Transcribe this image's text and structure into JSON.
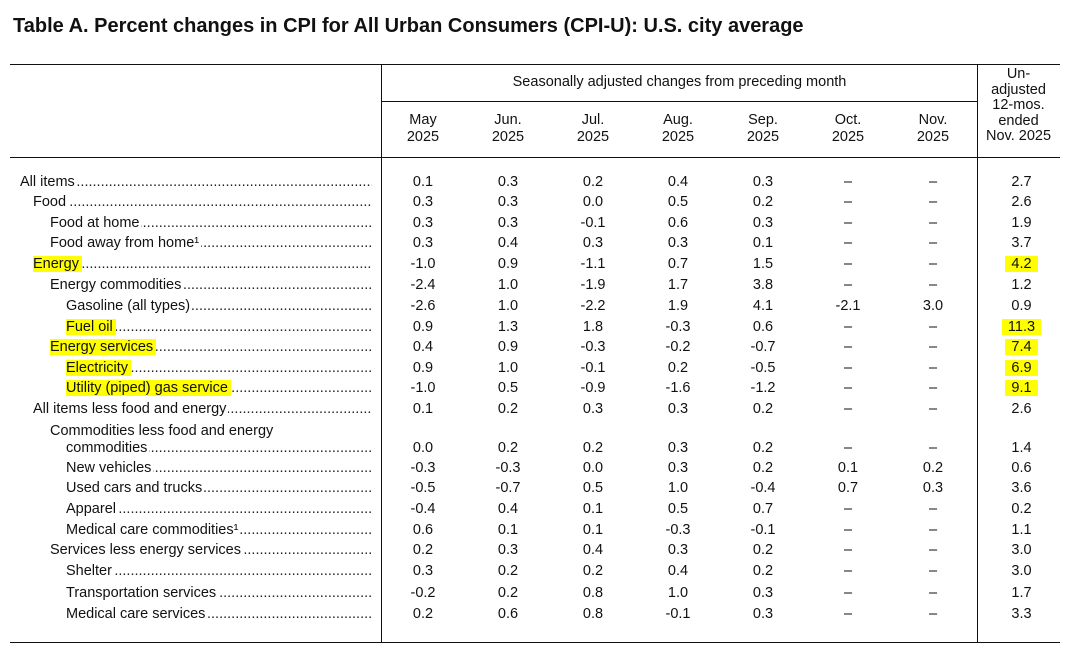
{
  "title": "Table A. Percent changes in CPI for All Urban Consumers (CPI-U): U.S. city average",
  "header": {
    "span_label": "Seasonally adjusted changes from preceding month",
    "columns": [
      {
        "line1": "May",
        "line2": "2025"
      },
      {
        "line1": "Jun.",
        "line2": "2025"
      },
      {
        "line1": "Jul.",
        "line2": "2025"
      },
      {
        "line1": "Aug.",
        "line2": "2025"
      },
      {
        "line1": "Sep.",
        "line2": "2025"
      },
      {
        "line1": "Oct.",
        "line2": "2025"
      },
      {
        "line1": "Nov.",
        "line2": "2025"
      }
    ],
    "unadjusted": [
      "Un-",
      "adjusted",
      "12-mos.",
      "ended",
      "Nov. 2025"
    ]
  },
  "highlight_color": "#ffff00",
  "rows": [
    {
      "label": "All items",
      "indent": 0,
      "highlight": false,
      "values": [
        "0.1",
        "0.3",
        "0.2",
        "0.4",
        "0.3",
        "–",
        "–",
        "2.7"
      ],
      "highlight_last": false
    },
    {
      "label": "Food",
      "indent": 1,
      "highlight": false,
      "values": [
        "0.3",
        "0.3",
        "0.0",
        "0.5",
        "0.2",
        "–",
        "–",
        "2.6"
      ],
      "highlight_last": false
    },
    {
      "label": "Food at home",
      "indent": 2,
      "highlight": false,
      "values": [
        "0.3",
        "0.3",
        "-0.1",
        "0.6",
        "0.3",
        "–",
        "–",
        "1.9"
      ],
      "highlight_last": false
    },
    {
      "label": "Food away from home¹",
      "indent": 2,
      "highlight": false,
      "values": [
        "0.3",
        "0.4",
        "0.3",
        "0.3",
        "0.1",
        "–",
        "–",
        "3.7"
      ],
      "highlight_last": false
    },
    {
      "label": "Energy",
      "indent": 1,
      "highlight": true,
      "values": [
        "-1.0",
        "0.9",
        "-1.1",
        "0.7",
        "1.5",
        "–",
        "–",
        "4.2"
      ],
      "highlight_last": true
    },
    {
      "label": "Energy commodities",
      "indent": 2,
      "highlight": false,
      "values": [
        "-2.4",
        "1.0",
        "-1.9",
        "1.7",
        "3.8",
        "–",
        "–",
        "1.2"
      ],
      "highlight_last": false
    },
    {
      "label": "Gasoline (all types)",
      "indent": 3,
      "highlight": false,
      "values": [
        "-2.6",
        "1.0",
        "-2.2",
        "1.9",
        "4.1",
        "-2.1",
        "3.0",
        "0.9"
      ],
      "highlight_last": false
    },
    {
      "label": "Fuel oil",
      "indent": 3,
      "highlight": true,
      "values": [
        "0.9",
        "1.3",
        "1.8",
        "-0.3",
        "0.6",
        "–",
        "–",
        "11.3"
      ],
      "highlight_last": true
    },
    {
      "label": "Energy services",
      "indent": 2,
      "highlight": true,
      "values": [
        "0.4",
        "0.9",
        "-0.3",
        "-0.2",
        "-0.7",
        "–",
        "–",
        "7.4"
      ],
      "highlight_last": true
    },
    {
      "label": "Electricity",
      "indent": 3,
      "highlight": true,
      "values": [
        "0.9",
        "1.0",
        "-0.1",
        "0.2",
        "-0.5",
        "–",
        "–",
        "6.9"
      ],
      "highlight_last": true
    },
    {
      "label": "Utility (piped) gas service",
      "indent": 3,
      "highlight": true,
      "values": [
        "-1.0",
        "0.5",
        "-0.9",
        "-1.6",
        "-1.2",
        "–",
        "–",
        "9.1"
      ],
      "highlight_last": true
    },
    {
      "label": "All items less food and energy",
      "indent": 1,
      "highlight": false,
      "values": [
        "0.1",
        "0.2",
        "0.3",
        "0.3",
        "0.2",
        "–",
        "–",
        "2.6"
      ],
      "highlight_last": false
    },
    {
      "label": "Commodities less food and energy",
      "indent": 2,
      "highlight": false,
      "values": [],
      "highlight_last": false,
      "nodots": true
    },
    {
      "label": "commodities",
      "indent": 3,
      "highlight": false,
      "values": [
        "0.0",
        "0.2",
        "0.2",
        "0.3",
        "0.2",
        "–",
        "–",
        "1.4"
      ],
      "highlight_last": false
    },
    {
      "label": "New vehicles",
      "indent": 3,
      "highlight": false,
      "values": [
        "-0.3",
        "-0.3",
        "0.0",
        "0.3",
        "0.2",
        "0.1",
        "0.2",
        "0.6"
      ],
      "highlight_last": false
    },
    {
      "label": "Used cars and trucks",
      "indent": 3,
      "highlight": false,
      "values": [
        "-0.5",
        "-0.7",
        "0.5",
        "1.0",
        "-0.4",
        "0.7",
        "0.3",
        "3.6"
      ],
      "highlight_last": false
    },
    {
      "label": "Apparel",
      "indent": 3,
      "highlight": false,
      "values": [
        "-0.4",
        "0.4",
        "0.1",
        "0.5",
        "0.7",
        "–",
        "–",
        "0.2"
      ],
      "highlight_last": false
    },
    {
      "label": "Medical care commodities¹",
      "indent": 3,
      "highlight": false,
      "values": [
        "0.6",
        "0.1",
        "0.1",
        "-0.3",
        "-0.1",
        "–",
        "–",
        "1.1"
      ],
      "highlight_last": false
    },
    {
      "label": "Services less energy services",
      "indent": 2,
      "highlight": false,
      "values": [
        "0.2",
        "0.3",
        "0.4",
        "0.3",
        "0.2",
        "–",
        "–",
        "3.0"
      ],
      "highlight_last": false
    },
    {
      "label": "Shelter",
      "indent": 3,
      "highlight": false,
      "values": [
        "0.3",
        "0.2",
        "0.2",
        "0.4",
        "0.2",
        "–",
        "–",
        "3.0"
      ],
      "highlight_last": false
    },
    {
      "label": "Transportation services",
      "indent": 3,
      "highlight": false,
      "values": [
        "-0.2",
        "0.2",
        "0.8",
        "1.0",
        "0.3",
        "–",
        "–",
        "1.7"
      ],
      "highlight_last": false
    },
    {
      "label": "Medical care services",
      "indent": 3,
      "highlight": false,
      "values": [
        "0.2",
        "0.6",
        "0.8",
        "-0.1",
        "0.3",
        "–",
        "–",
        "3.3"
      ],
      "highlight_last": false
    }
  ]
}
